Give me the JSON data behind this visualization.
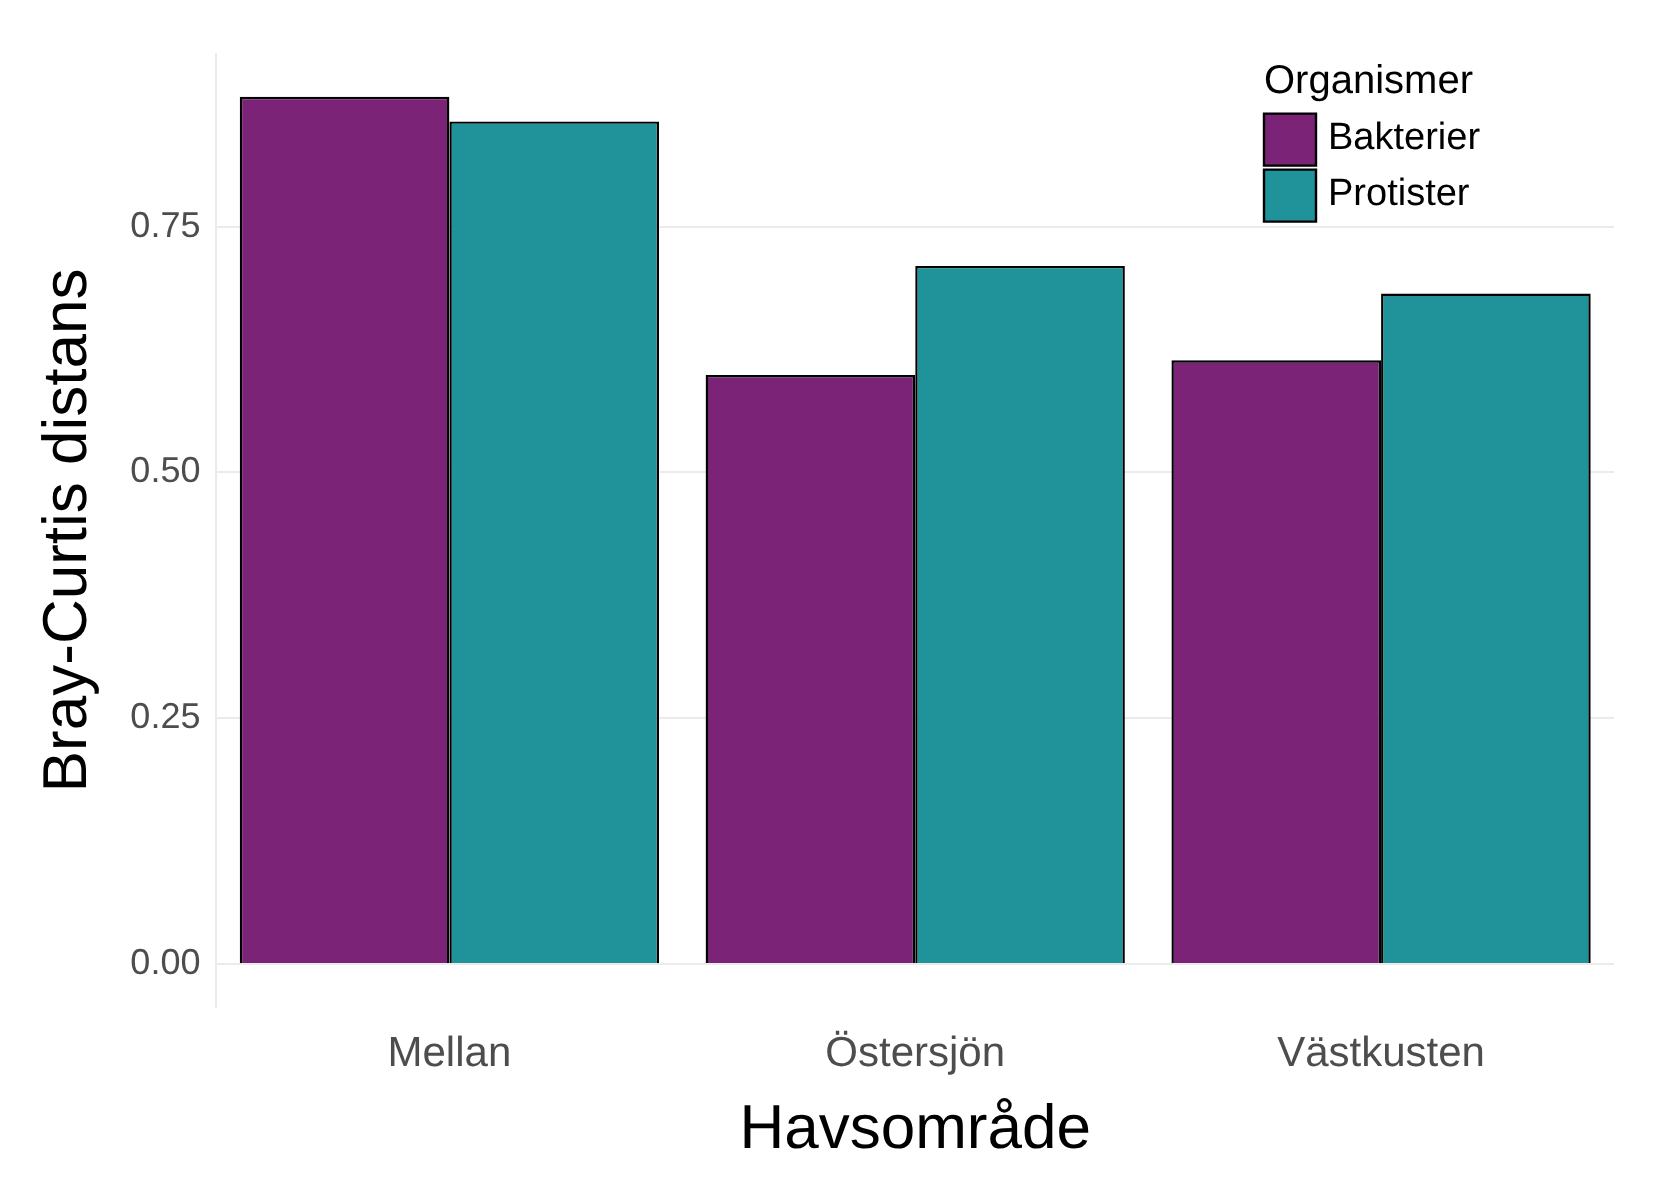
{
  "chart_data": {
    "type": "bar",
    "xlabel": "Havsområde",
    "ylabel": "Bray-Curtis distans",
    "legend_title": "Organismer",
    "categories": [
      "Mellan",
      "Östersjön",
      "Västkusten"
    ],
    "series": [
      {
        "name": "Bakterier",
        "color": "#7b2376",
        "values": [
          0.882,
          0.599,
          0.614
        ]
      },
      {
        "name": "Protister",
        "color": "#20929a",
        "values": [
          0.857,
          0.71,
          0.682
        ]
      }
    ],
    "ylim": [
      -0.044,
      0.926
    ],
    "yticks": [
      {
        "value": 0,
        "label": "0.00"
      },
      {
        "value": 0.25,
        "label": "0.25"
      },
      {
        "value": 0.5,
        "label": "0.50"
      },
      {
        "value": 0.75,
        "label": "0.75"
      }
    ],
    "grid": "y",
    "legend": "top right"
  }
}
